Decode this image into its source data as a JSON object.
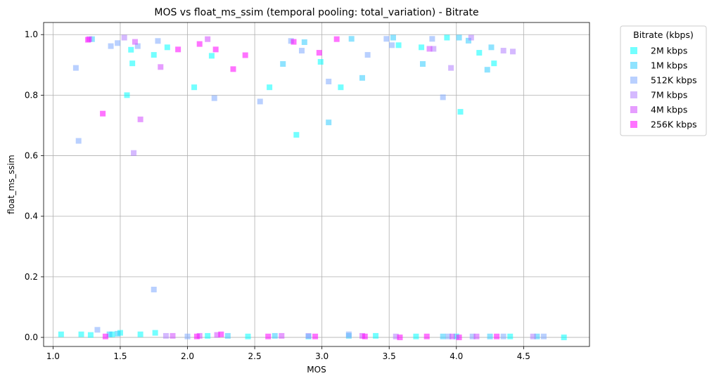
{
  "chart_data": {
    "type": "scatter",
    "title": "MOS vs float_ms_ssim (temporal pooling: total_variation) - Bitrate",
    "xlabel": "MOS",
    "ylabel": "float_ms_ssim",
    "xlim": [
      0.93,
      4.99
    ],
    "ylim": [
      -0.03,
      1.04
    ],
    "xticks": [
      1.0,
      1.5,
      2.0,
      2.5,
      3.0,
      3.5,
      4.0,
      4.5
    ],
    "xtick_labels": [
      "1.0",
      "1.5",
      "2.0",
      "2.5",
      "3.0",
      "3.5",
      "4.0",
      "4.5"
    ],
    "yticks": [
      0.0,
      0.2,
      0.4,
      0.6,
      0.8,
      1.0
    ],
    "ytick_labels": [
      "0.0",
      "0.2",
      "0.4",
      "0.6",
      "0.8",
      "1.0"
    ],
    "grid": true,
    "marker": "square",
    "legend": {
      "title": "Bitrate (kbps)",
      "placement": "outside-upper-right"
    },
    "series": [
      {
        "name": "2M kbps",
        "color": "#00ffff",
        "points": [
          [
            1.06,
            0.01
          ],
          [
            1.21,
            0.01
          ],
          [
            1.28,
            0.008
          ],
          [
            1.44,
            0.01
          ],
          [
            1.5,
            0.015
          ],
          [
            1.65,
            0.01
          ],
          [
            1.76,
            0.015
          ],
          [
            2.15,
            0.005
          ],
          [
            2.45,
            0.003
          ],
          [
            2.9,
            0.003
          ],
          [
            3.4,
            0.005
          ],
          [
            3.7,
            0.003
          ],
          [
            4.0,
            0.003
          ],
          [
            4.4,
            0.003
          ],
          [
            4.8,
            0.0
          ],
          [
            1.58,
            0.95
          ],
          [
            1.59,
            0.905
          ],
          [
            1.55,
            0.8
          ],
          [
            1.75,
            0.933
          ],
          [
            1.85,
            0.958
          ],
          [
            2.05,
            0.826
          ],
          [
            2.18,
            0.93
          ],
          [
            2.61,
            0.826
          ],
          [
            2.81,
            0.669
          ],
          [
            2.99,
            0.91
          ],
          [
            3.14,
            0.826
          ],
          [
            3.57,
            0.965
          ],
          [
            3.74,
            0.958
          ],
          [
            3.93,
            0.99
          ],
          [
            4.03,
            0.745
          ],
          [
            4.17,
            0.94
          ],
          [
            4.28,
            0.905
          ]
        ]
      },
      {
        "name": "1M kbps",
        "color": "#33ccff",
        "points": [
          [
            1.29,
            0.985
          ],
          [
            1.42,
            0.01
          ],
          [
            1.48,
            0.012
          ],
          [
            2.3,
            0.005
          ],
          [
            2.65,
            0.005
          ],
          [
            3.2,
            0.005
          ],
          [
            3.9,
            0.003
          ],
          [
            4.25,
            0.003
          ],
          [
            4.6,
            0.003
          ],
          [
            2.71,
            0.903
          ],
          [
            2.87,
            0.975
          ],
          [
            3.05,
            0.71
          ],
          [
            3.22,
            0.986
          ],
          [
            3.3,
            0.857
          ],
          [
            3.53,
            0.99
          ],
          [
            3.75,
            0.903
          ],
          [
            4.02,
            0.99
          ],
          [
            4.09,
            0.98
          ],
          [
            4.23,
            0.884
          ],
          [
            4.26,
            0.958
          ]
        ]
      },
      {
        "name": "512K kbps",
        "color": "#80aaff",
        "points": [
          [
            1.17,
            0.89
          ],
          [
            1.19,
            0.649
          ],
          [
            1.33,
            0.025
          ],
          [
            1.43,
            0.962
          ],
          [
            1.48,
            0.972
          ],
          [
            1.63,
            0.962
          ],
          [
            1.75,
            0.158
          ],
          [
            1.78,
            0.979
          ],
          [
            2.0,
            0.003
          ],
          [
            2.2,
            0.79
          ],
          [
            2.54,
            0.779
          ],
          [
            2.77,
            0.979
          ],
          [
            2.85,
            0.947
          ],
          [
            3.05,
            0.845
          ],
          [
            3.2,
            0.01
          ],
          [
            3.34,
            0.933
          ],
          [
            3.48,
            0.986
          ],
          [
            3.52,
            0.965
          ],
          [
            3.82,
            0.986
          ],
          [
            3.9,
            0.793
          ],
          [
            3.94,
            0.003
          ],
          [
            4.12,
            0.003
          ],
          [
            4.35,
            0.003
          ],
          [
            4.65,
            0.003
          ]
        ]
      },
      {
        "name": "7M kbps",
        "color": "#b380ff",
        "points": [
          [
            1.53,
            0.99
          ],
          [
            1.6,
            0.609
          ],
          [
            1.84,
            0.005
          ],
          [
            2.9,
            0.005
          ],
          [
            3.55,
            0.003
          ],
          [
            3.83,
            0.953
          ],
          [
            3.96,
            0.89
          ],
          [
            4.11,
            0.99
          ],
          [
            4.35,
            0.947
          ],
          [
            4.42,
            0.944
          ],
          [
            4.57,
            0.003
          ]
        ]
      },
      {
        "name": "4M kbps",
        "color": "#d24cff",
        "points": [
          [
            1.27,
            0.985
          ],
          [
            1.61,
            0.976
          ],
          [
            1.65,
            0.72
          ],
          [
            1.8,
            0.893
          ],
          [
            1.89,
            0.005
          ],
          [
            2.09,
            0.005
          ],
          [
            2.15,
            0.985
          ],
          [
            2.22,
            0.008
          ],
          [
            2.7,
            0.005
          ],
          [
            3.3,
            0.005
          ],
          [
            3.8,
            0.953
          ],
          [
            3.97,
            0.003
          ],
          [
            4.15,
            0.003
          ]
        ]
      },
      {
        "name": "256K kbps",
        "color": "#ff00ff",
        "points": [
          [
            1.26,
            0.983
          ],
          [
            1.37,
            0.739
          ],
          [
            1.39,
            0.003
          ],
          [
            1.93,
            0.951
          ],
          [
            2.07,
            0.003
          ],
          [
            2.09,
            0.969
          ],
          [
            2.21,
            0.951
          ],
          [
            2.25,
            0.01
          ],
          [
            2.34,
            0.886
          ],
          [
            2.43,
            0.932
          ],
          [
            2.6,
            0.003
          ],
          [
            2.79,
            0.976
          ],
          [
            2.95,
            0.003
          ],
          [
            2.98,
            0.94
          ],
          [
            3.11,
            0.985
          ],
          [
            3.32,
            0.003
          ],
          [
            3.58,
            0.0
          ],
          [
            3.78,
            0.003
          ],
          [
            4.02,
            0.0
          ],
          [
            4.3,
            0.003
          ]
        ]
      }
    ]
  }
}
